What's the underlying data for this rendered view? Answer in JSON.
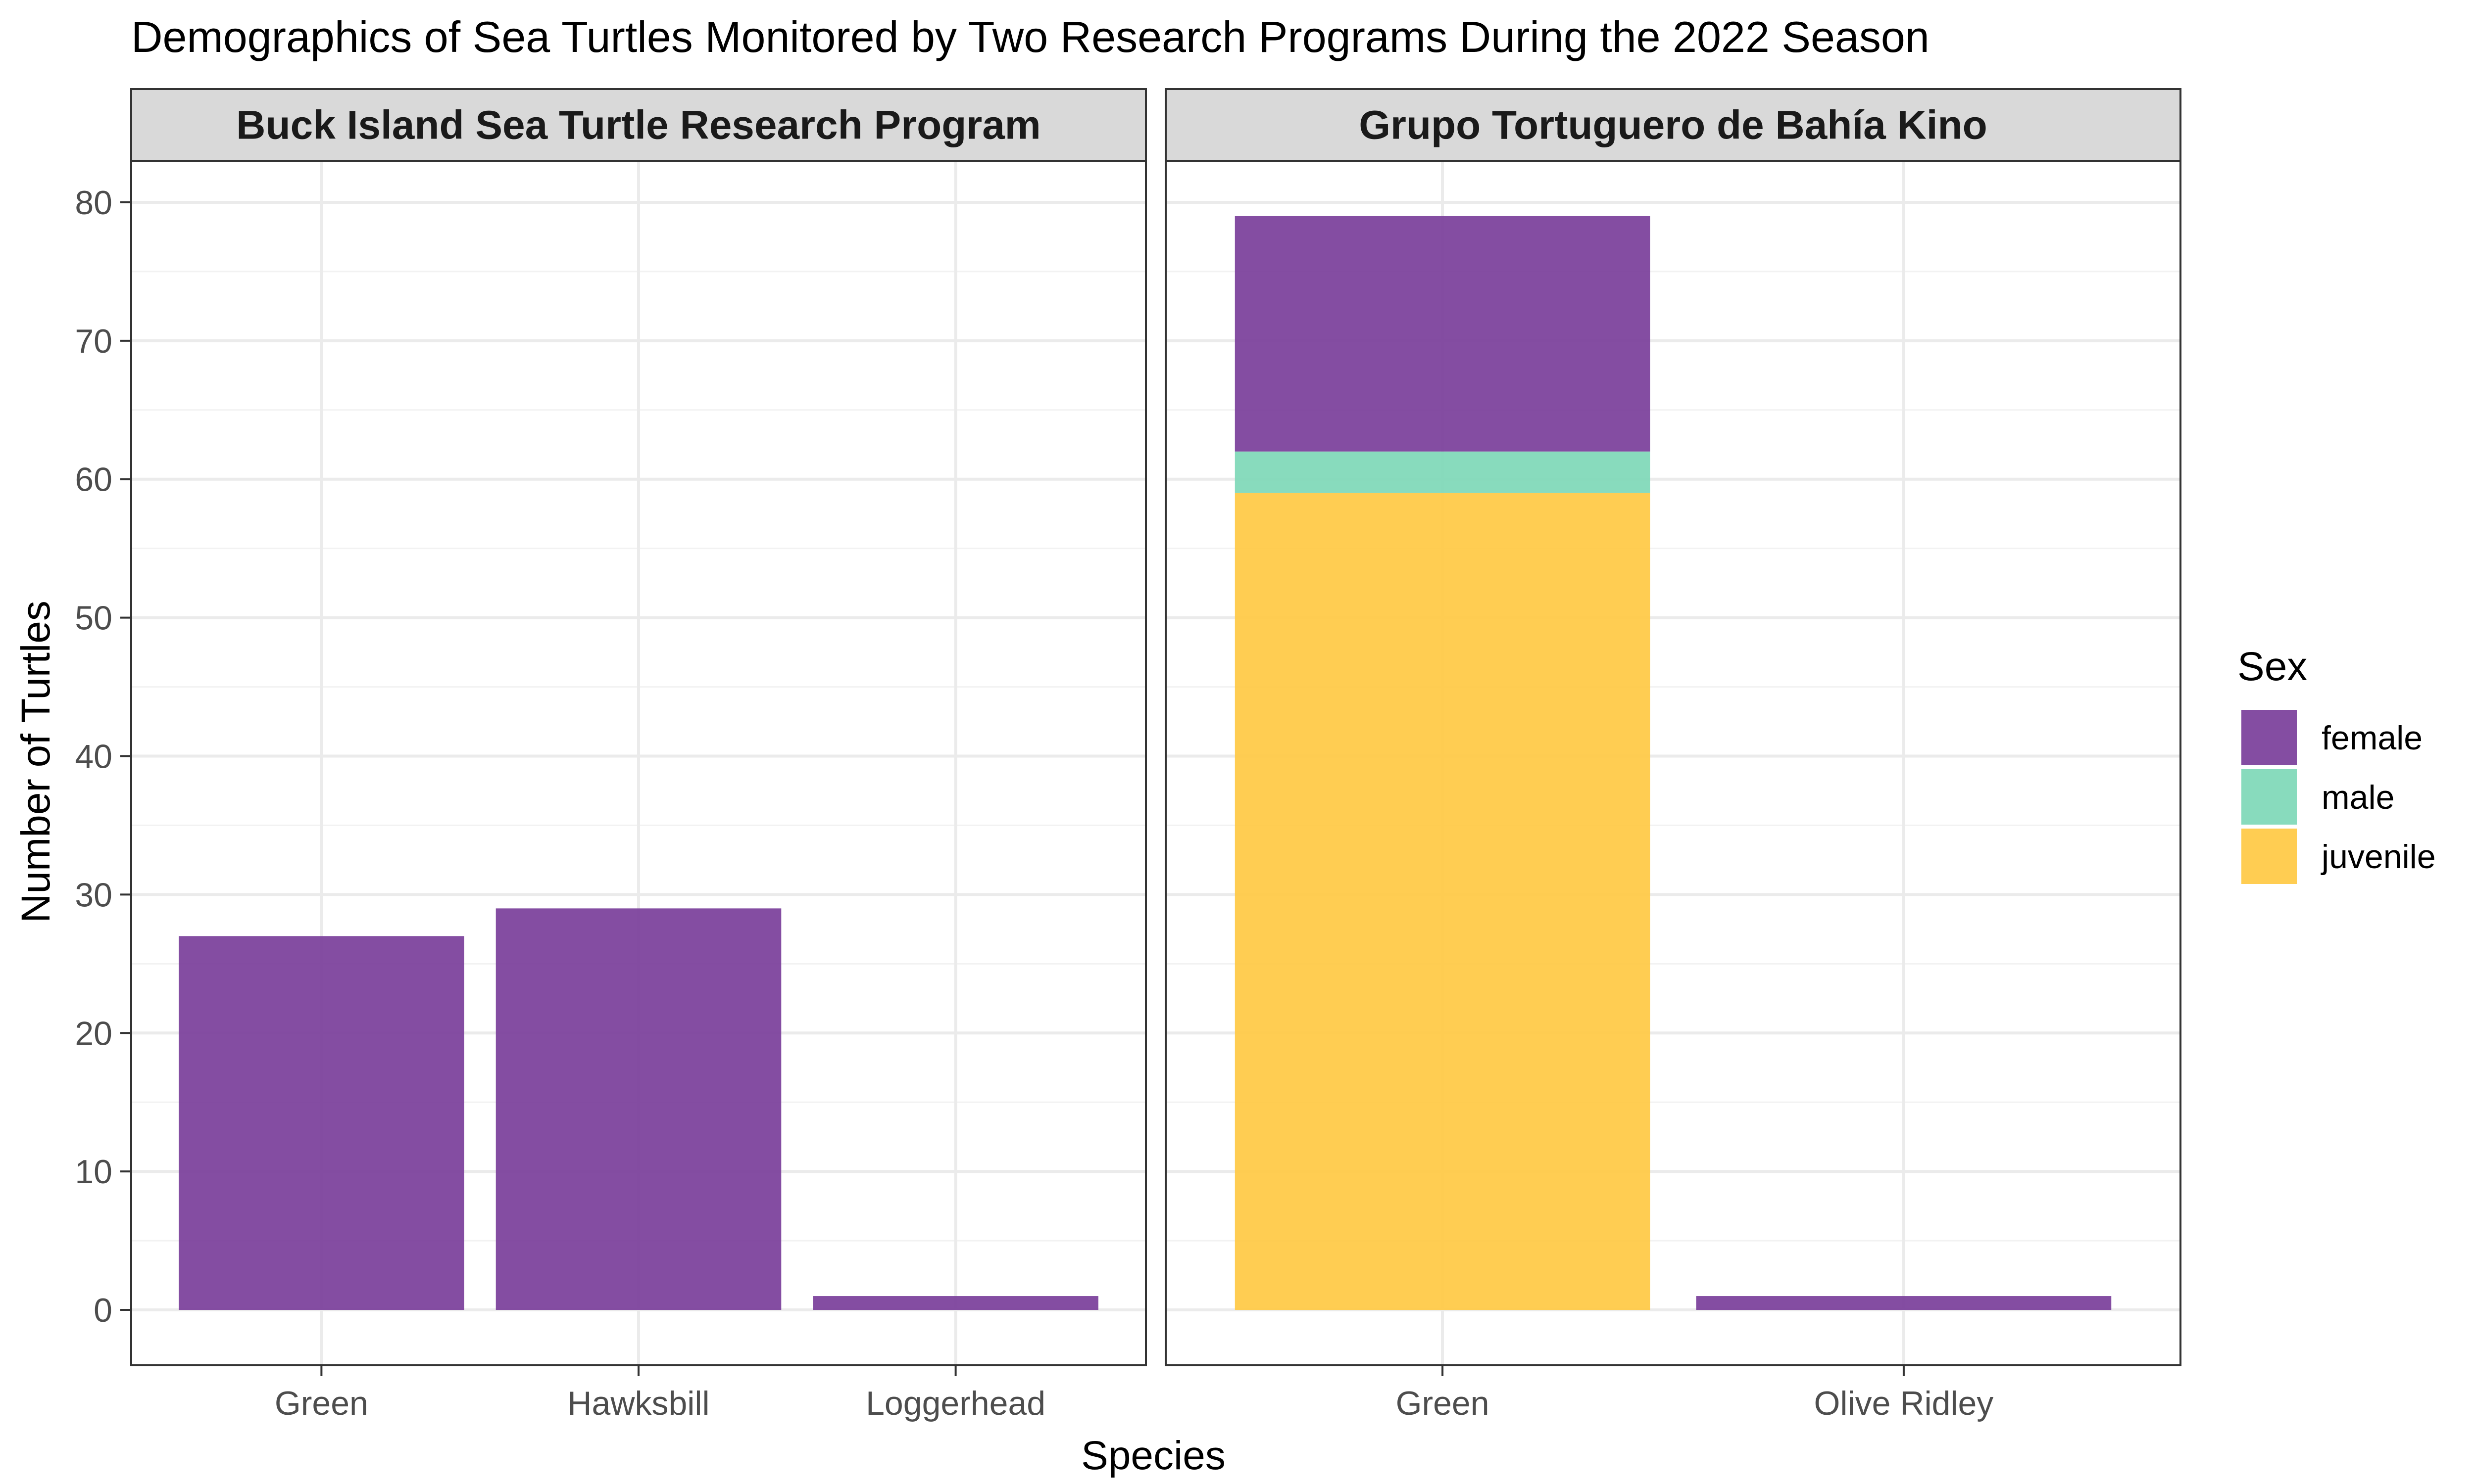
{
  "chart_data": {
    "type": "bar",
    "stacked": true,
    "title": "Demographics of Sea Turtles Monitored by Two Research Programs During the 2022 Season",
    "xlabel": "Species",
    "ylabel": "Number of Turtles",
    "ylim": [
      -4,
      83
    ],
    "yticks": [
      0,
      10,
      20,
      30,
      40,
      50,
      60,
      70,
      80
    ],
    "grid": true,
    "legend": {
      "title": "Sex",
      "position": "right",
      "entries": [
        {
          "key": "female",
          "label": "female",
          "color": "#7B3F9B"
        },
        {
          "key": "male",
          "label": "male",
          "color": "#7FD8B8"
        },
        {
          "key": "juvenile",
          "label": "juvenile",
          "color": "#FFC945"
        }
      ]
    },
    "panels": [
      {
        "label": "Buck Island Sea Turtle Research Program",
        "categories": [
          "Green",
          "Hawksbill",
          "Loggerhead"
        ],
        "series": [
          {
            "name": "juvenile",
            "values": [
              0,
              0,
              0
            ]
          },
          {
            "name": "male",
            "values": [
              0,
              0,
              0
            ]
          },
          {
            "name": "female",
            "values": [
              27,
              29,
              1
            ]
          }
        ]
      },
      {
        "label": "Grupo Tortuguero de Bahía Kino",
        "categories": [
          "Green",
          "Olive Ridley"
        ],
        "series": [
          {
            "name": "juvenile",
            "values": [
              59,
              0
            ]
          },
          {
            "name": "male",
            "values": [
              3,
              0
            ]
          },
          {
            "name": "female",
            "values": [
              17,
              1
            ]
          }
        ]
      }
    ]
  }
}
